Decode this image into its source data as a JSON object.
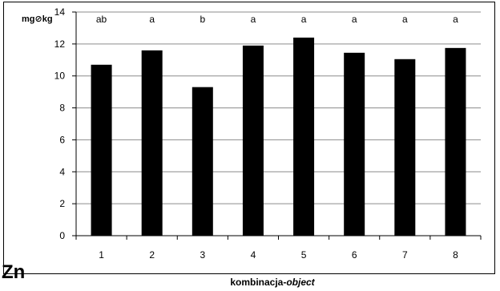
{
  "chart_data": {
    "type": "bar",
    "ylabel": "mg⊘kg",
    "xlabel_prefix": "kombinacja-",
    "xlabel_italic": "object",
    "panel_label": "Zn",
    "categories": [
      "1",
      "2",
      "3",
      "4",
      "5",
      "6",
      "7",
      "8"
    ],
    "values": [
      10.7,
      11.6,
      9.3,
      11.9,
      12.4,
      11.45,
      11.05,
      11.75
    ],
    "letters": [
      "ab",
      "a",
      "b",
      "a",
      "a",
      "a",
      "a",
      "a"
    ],
    "ylim": [
      0,
      14
    ],
    "yticks": [
      "0",
      "2",
      "4",
      "6",
      "8",
      "10",
      "12",
      "14"
    ],
    "grid": true,
    "bar_color": "#000000"
  }
}
